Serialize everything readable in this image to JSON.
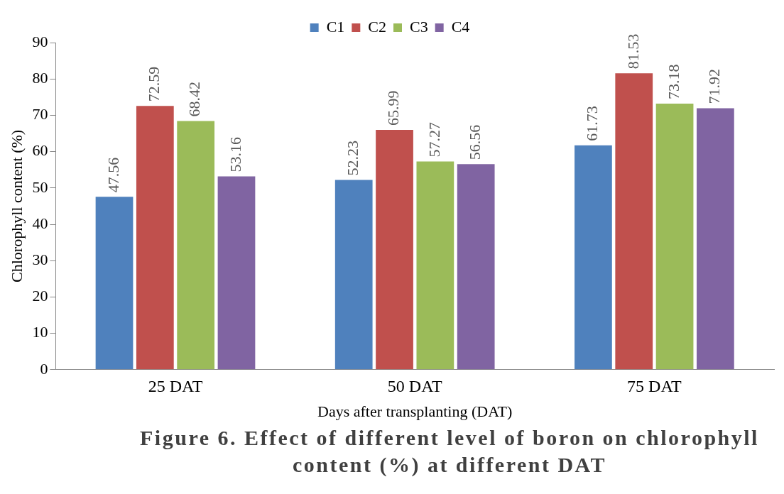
{
  "chart_data": {
    "type": "bar",
    "title": "Figure 6. Effect of different level of boron on chlorophyll content (%) at different DAT",
    "xlabel": "Days after transplanting (DAT)",
    "ylabel": "Chlorophyll content (%)",
    "categories": [
      "25 DAT",
      "50 DAT",
      "75 DAT"
    ],
    "series": [
      {
        "name": "C1",
        "color": "#4f81bd",
        "values": [
          47.56,
          52.23,
          61.73
        ]
      },
      {
        "name": "C2",
        "color": "#c0504d",
        "values": [
          72.59,
          65.99,
          81.53
        ]
      },
      {
        "name": "C3",
        "color": "#9bbb59",
        "values": [
          68.42,
          57.27,
          73.18
        ]
      },
      {
        "name": "C4",
        "color": "#8064a2",
        "values": [
          53.16,
          56.56,
          71.92
        ]
      }
    ],
    "ylim": [
      0,
      90
    ],
    "yticks": [
      0,
      10,
      20,
      30,
      40,
      50,
      60,
      70,
      80,
      90
    ],
    "grid": false,
    "legend": "top",
    "data_labels": true
  }
}
